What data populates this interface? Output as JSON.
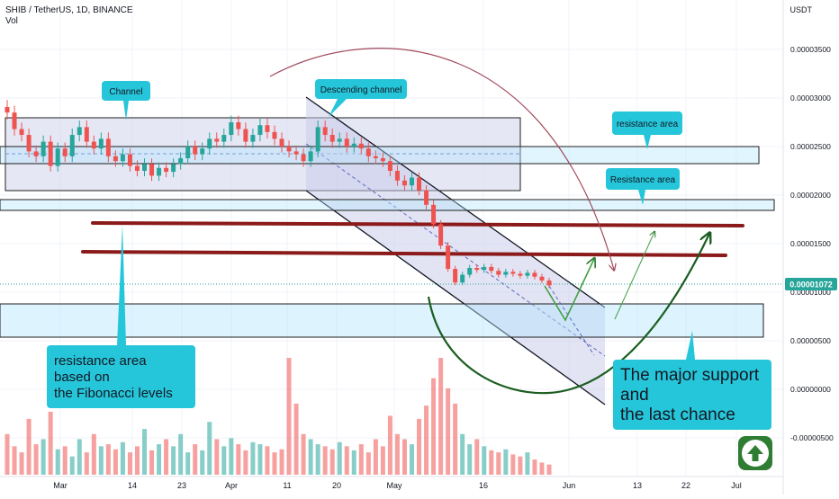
{
  "header": {
    "symbol_line": "SHIB / TetherUS, 1D, BINANCE",
    "volume_label": "Vol"
  },
  "currency_label": "USDT",
  "colors": {
    "up": "#26a69a",
    "down": "#ef5350",
    "annotation_box": "#26c6da",
    "resistance_line": "#8b1a1a",
    "channel_fill": "#c5cae9",
    "support_curve": "#1b5e20",
    "price_badge": "#26a69a",
    "arc": "#a1485a"
  },
  "chart_data": {
    "type": "candlestick",
    "title": "SHIB / TetherUS, 1D, BINANCE",
    "y_axis_ticks": [
      "0.00003500",
      "0.00003000",
      "0.00002500",
      "0.00002000",
      "0.00001500",
      "0.00001000",
      "0.00000500",
      "0.00000000",
      "-0.00000500"
    ],
    "y_axis_values": [
      3.5e-05,
      3e-05,
      2.5e-05,
      2e-05,
      1.5e-05,
      1e-05,
      5e-06,
      0.0,
      -5e-06
    ],
    "last_price": "0.00001072",
    "x_axis_ticks": [
      "Mar",
      "14",
      "23",
      "Apr",
      "11",
      "20",
      "May",
      "16",
      "Jun",
      "13",
      "22",
      "Jul"
    ],
    "ylim": [
      -6.5e-06,
      3.95e-05
    ],
    "candles_close": [
      2.85e-05,
      2.68e-05,
      2.62e-05,
      2.45e-05,
      2.4e-05,
      2.55e-05,
      2.3e-05,
      2.48e-05,
      2.4e-05,
      2.62e-05,
      2.7e-05,
      2.55e-05,
      2.48e-05,
      2.58e-05,
      2.4e-05,
      2.35e-05,
      2.42e-05,
      2.3e-05,
      2.25e-05,
      2.32e-05,
      2.2e-05,
      2.28e-05,
      2.24e-05,
      2.32e-05,
      2.38e-05,
      2.5e-05,
      2.42e-05,
      2.48e-05,
      2.58e-05,
      2.55e-05,
      2.62e-05,
      2.75e-05,
      2.68e-05,
      2.55e-05,
      2.62e-05,
      2.72e-05,
      2.65e-05,
      2.58e-05,
      2.5e-05,
      2.45e-05,
      2.42e-05,
      2.35e-05,
      2.45e-05,
      2.7e-05,
      2.62e-05,
      2.55e-05,
      2.58e-05,
      2.5e-05,
      2.53e-05,
      2.48e-05,
      2.4e-05,
      2.38e-05,
      2.35e-05,
      2.25e-05,
      2.15e-05,
      2.1e-05,
      2.18e-05,
      2.05e-05,
      1.9e-05,
      1.7e-05,
      1.48e-05,
      1.24e-05,
      1.1e-05,
      1.18e-05,
      1.25e-05,
      1.23e-05,
      1.26e-05,
      1.22e-05,
      1.18e-05,
      1.21e-05,
      1.19e-05,
      1.17e-05,
      1.2e-05,
      1.16e-05,
      1.12e-05,
      1.07e-05
    ],
    "volume": [
      40,
      28,
      22,
      55,
      30,
      35,
      62,
      25,
      28,
      18,
      35,
      22,
      40,
      28,
      30,
      25,
      32,
      22,
      28,
      45,
      24,
      30,
      35,
      28,
      40,
      22,
      30,
      24,
      52,
      35,
      28,
      36,
      30,
      24,
      32,
      30,
      28,
      22,
      25,
      115,
      70,
      40,
      35,
      30,
      28,
      25,
      32,
      28,
      24,
      30,
      22,
      35,
      28,
      58,
      40,
      35,
      30,
      55,
      68,
      95,
      115,
      85,
      70,
      40,
      30,
      35,
      28,
      24,
      22,
      25,
      20,
      18,
      22,
      15,
      12,
      10
    ],
    "annotations": [
      {
        "text": "Channel"
      },
      {
        "text": "Descending channel"
      },
      {
        "text": "resistance area"
      },
      {
        "text": "Resistance area"
      },
      {
        "text": "resistance area based on the Fibonacci levels"
      },
      {
        "text": "The major support and the last chance"
      }
    ]
  },
  "labels": {
    "channel": "Channel",
    "descending_channel": "Descending channel",
    "resistance_upper": "resistance area",
    "resistance_lower": "Resistance area",
    "fib_line1": "resistance area",
    "fib_line2": "based on",
    "fib_line3": "the Fibonacci levels",
    "support_line1": "The major support",
    "support_line2": "and",
    "support_line3": "the last chance"
  }
}
